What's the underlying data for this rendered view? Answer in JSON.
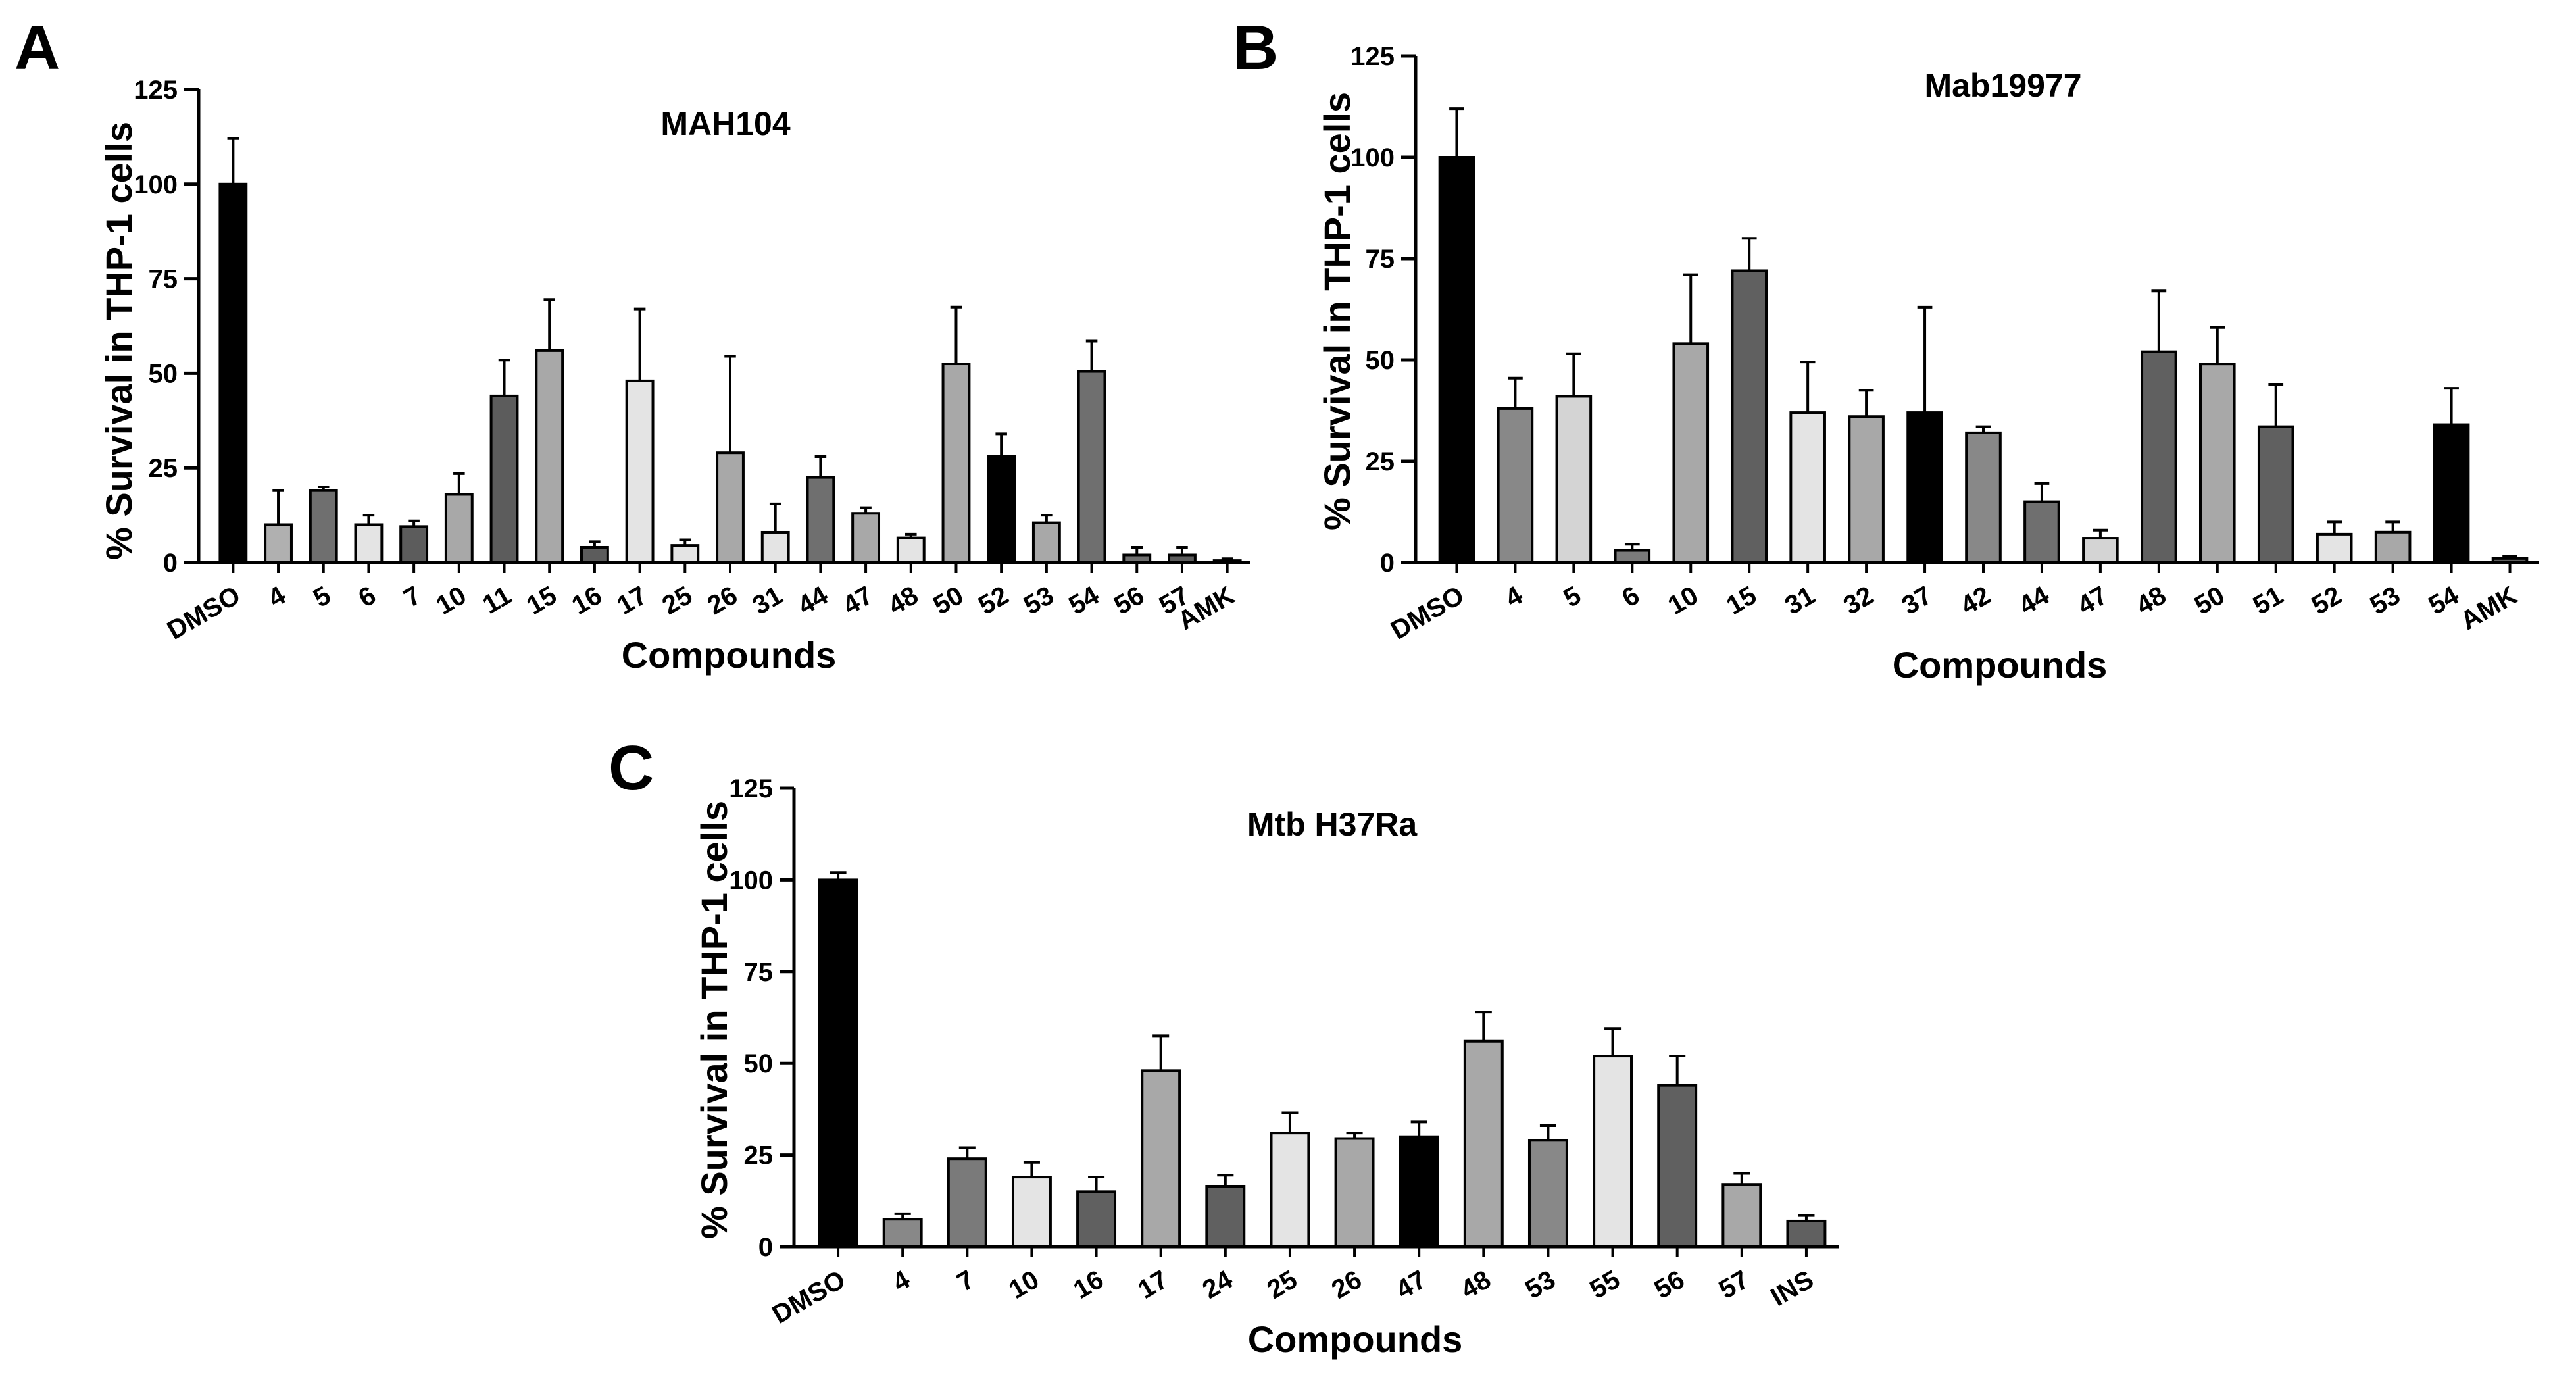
{
  "chart_data": [
    {
      "panel": "A",
      "type": "bar",
      "title": "MAH104",
      "xlabel": "Compounds",
      "ylabel": "% Survival in THP-1 cells",
      "ylim": [
        0,
        125
      ],
      "yticks": [
        0,
        25,
        50,
        75,
        100,
        125
      ],
      "categories": [
        "DMSO",
        "4",
        "5",
        "6",
        "7",
        "10",
        "11",
        "15",
        "16",
        "17",
        "25",
        "26",
        "31",
        "44",
        "47",
        "48",
        "50",
        "52",
        "53",
        "54",
        "56",
        "57",
        "AMK"
      ],
      "values": [
        100,
        10,
        19,
        10,
        9.5,
        18,
        44,
        56,
        4,
        48,
        4.5,
        29,
        8,
        22.5,
        13,
        6.5,
        52.5,
        28,
        10.5,
        50.5,
        2,
        2,
        0.5
      ],
      "errors": [
        12,
        9,
        1,
        2.5,
        1.5,
        5.5,
        9.5,
        13.5,
        1.5,
        19,
        1.5,
        25.5,
        7.5,
        5.5,
        1.5,
        1,
        15,
        6,
        2,
        8,
        2,
        2,
        0.5
      ],
      "colors": [
        "#000000",
        "#b0b0b0",
        "#6f6f6f",
        "#e4e4e4",
        "#5c5c5c",
        "#a8a8a8",
        "#5c5c5c",
        "#a8a8a8",
        "#5c5c5c",
        "#e4e4e4",
        "#e4e4e4",
        "#a8a8a8",
        "#e4e4e4",
        "#6f6f6f",
        "#a8a8a8",
        "#e4e4e4",
        "#a8a8a8",
        "#000000",
        "#a8a8a8",
        "#6f6f6f",
        "#6f6f6f",
        "#5c5c5c",
        "#e4e4e4"
      ]
    },
    {
      "panel": "B",
      "type": "bar",
      "title": "Mab19977",
      "xlabel": "Compounds",
      "ylabel": "% Survival in THP-1 cells",
      "ylim": [
        0,
        125
      ],
      "yticks": [
        0,
        25,
        50,
        75,
        100,
        125
      ],
      "categories": [
        "DMSO",
        "4",
        "5",
        "6",
        "10",
        "15",
        "31",
        "32",
        "37",
        "42",
        "44",
        "47",
        "48",
        "50",
        "51",
        "52",
        "53",
        "54",
        "AMK"
      ],
      "values": [
        100,
        38,
        41,
        3,
        54,
        72,
        37,
        36,
        37,
        32,
        15,
        6,
        52,
        49,
        33.5,
        7,
        7.5,
        34,
        1
      ],
      "errors": [
        12,
        7.5,
        10.5,
        1.5,
        17,
        8,
        12.5,
        6.5,
        26,
        1.5,
        4.5,
        2,
        15,
        9,
        10.5,
        3,
        2.5,
        9,
        0.5
      ],
      "colors": [
        "#000000",
        "#888888",
        "#d4d4d4",
        "#7a7a7a",
        "#a8a8a8",
        "#606060",
        "#e4e4e4",
        "#a8a8a8",
        "#000000",
        "#888888",
        "#6f6f6f",
        "#d4d4d4",
        "#606060",
        "#a8a8a8",
        "#606060",
        "#e4e4e4",
        "#a8a8a8",
        "#000000",
        "#606060"
      ]
    },
    {
      "panel": "C",
      "type": "bar",
      "title": "Mtb H37Ra",
      "xlabel": "Compounds",
      "ylabel": "% Survival in THP-1 cells",
      "ylim": [
        0,
        125
      ],
      "yticks": [
        0,
        25,
        50,
        75,
        100,
        125
      ],
      "categories": [
        "DMSO",
        "4",
        "7",
        "10",
        "16",
        "17",
        "24",
        "25",
        "26",
        "47",
        "48",
        "53",
        "55",
        "56",
        "57",
        "INS"
      ],
      "values": [
        100,
        7.5,
        24,
        19,
        15,
        48,
        16.5,
        31,
        29.5,
        30,
        56,
        29,
        52,
        44,
        17,
        7
      ],
      "errors": [
        2,
        1.5,
        3,
        4,
        4,
        9.5,
        3,
        5.5,
        1.5,
        4,
        8,
        4,
        7.5,
        8,
        3,
        1.5
      ],
      "colors": [
        "#000000",
        "#888888",
        "#7a7a7a",
        "#e4e4e4",
        "#606060",
        "#a8a8a8",
        "#606060",
        "#e4e4e4",
        "#a8a8a8",
        "#000000",
        "#a8a8a8",
        "#888888",
        "#e4e4e4",
        "#606060",
        "#a8a8a8",
        "#606060"
      ]
    }
  ]
}
